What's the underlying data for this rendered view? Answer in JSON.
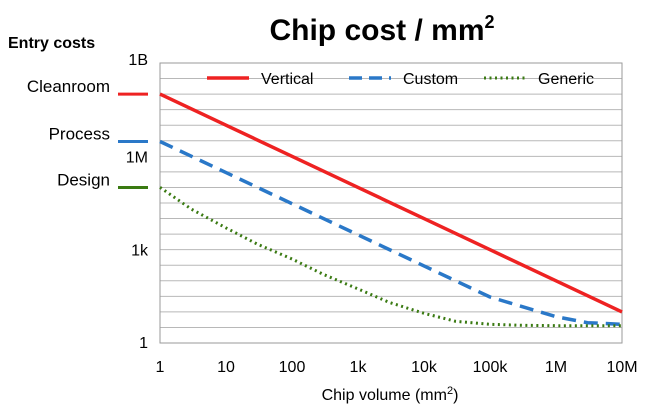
{
  "chart_data": {
    "type": "line",
    "title": "Chip cost / mm",
    "title_sup": "2",
    "xlabel": "Chip volume (mm",
    "xlabel_sup": "2",
    "xlabel_end": ")",
    "x_scale": "log",
    "y_scale": "log",
    "x_ticks": [
      {
        "value": 1,
        "label": "1"
      },
      {
        "value": 10,
        "label": "10"
      },
      {
        "value": 100,
        "label": "100"
      },
      {
        "value": 1000,
        "label": "1k"
      },
      {
        "value": 10000,
        "label": "10k"
      },
      {
        "value": 100000,
        "label": "100k"
      },
      {
        "value": 1000000,
        "label": "1M"
      },
      {
        "value": 10000000,
        "label": "10M"
      }
    ],
    "y_ticks": [
      {
        "value": 1,
        "label": "1"
      },
      {
        "value": 1000,
        "label": "1k"
      },
      {
        "value": 1000000,
        "label": "1M"
      },
      {
        "value": 1000000000,
        "label": "1B"
      }
    ],
    "xlim": [
      1,
      10000000
    ],
    "ylim": [
      1,
      1000000000
    ],
    "gridlines_y_per_decade": 2,
    "grid": true,
    "legend_position": "top",
    "series": [
      {
        "name": "Vertical",
        "color": "#ee2222",
        "style": "solid",
        "x": [
          1,
          10,
          100,
          1000,
          10000,
          100000,
          1000000,
          10000000
        ],
        "y": [
          100000000,
          10000000,
          1000000,
          100000,
          10000,
          1000,
          100,
          10
        ]
      },
      {
        "name": "Custom",
        "color": "#2a78c8",
        "style": "dashed",
        "x": [
          1,
          10,
          100,
          1000,
          10000,
          100000,
          1000000,
          3000000,
          10000000
        ],
        "y": [
          3000000,
          300000,
          30000,
          3000,
          300,
          30,
          7,
          4.5,
          4
        ]
      },
      {
        "name": "Generic",
        "color": "#3a7a12",
        "style": "dotted",
        "x": [
          1,
          3,
          10,
          30,
          100,
          300,
          1000,
          3000,
          10000,
          30000,
          100000,
          300000,
          1000000,
          10000000
        ],
        "y": [
          100000,
          20000,
          5000,
          1500,
          500,
          160,
          55,
          20,
          9,
          5,
          4,
          3.7,
          3.6,
          3.6
        ]
      }
    ],
    "entry_costs": {
      "title": "Entry costs",
      "items": [
        {
          "label": "Cleanroom",
          "value": 100000000,
          "color": "#ee2222"
        },
        {
          "label": "Process",
          "value": 3000000,
          "color": "#2a78c8"
        },
        {
          "label": "Design",
          "value": 100000,
          "color": "#3a7a12"
        }
      ]
    }
  }
}
